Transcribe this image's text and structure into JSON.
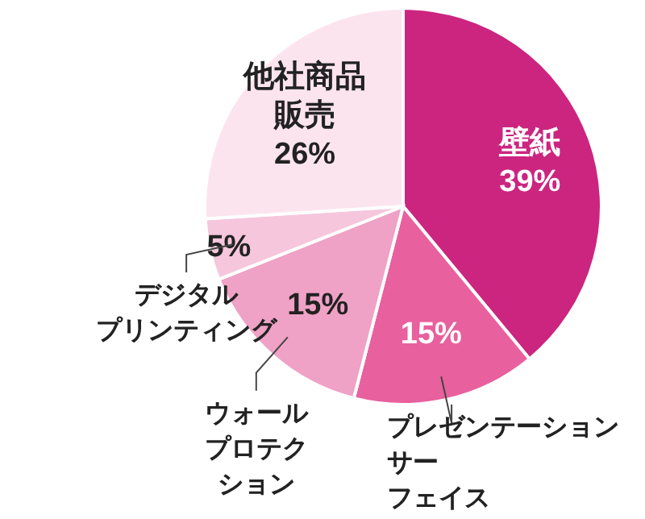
{
  "chart_data": {
    "type": "pie",
    "categories": [
      "壁紙",
      "プレゼンテーションサーフェイス",
      "ウォールプロテクション",
      "デジタルプリンティング",
      "他社商品販売"
    ],
    "values": [
      39,
      15,
      15,
      5,
      26
    ],
    "value_labels": [
      "39%",
      "15%",
      "15%",
      "5%",
      "26%"
    ],
    "colors": [
      "#cc2580",
      "#e8609d",
      "#efa2c5",
      "#f5c6dc",
      "#fce4ee"
    ]
  }
}
